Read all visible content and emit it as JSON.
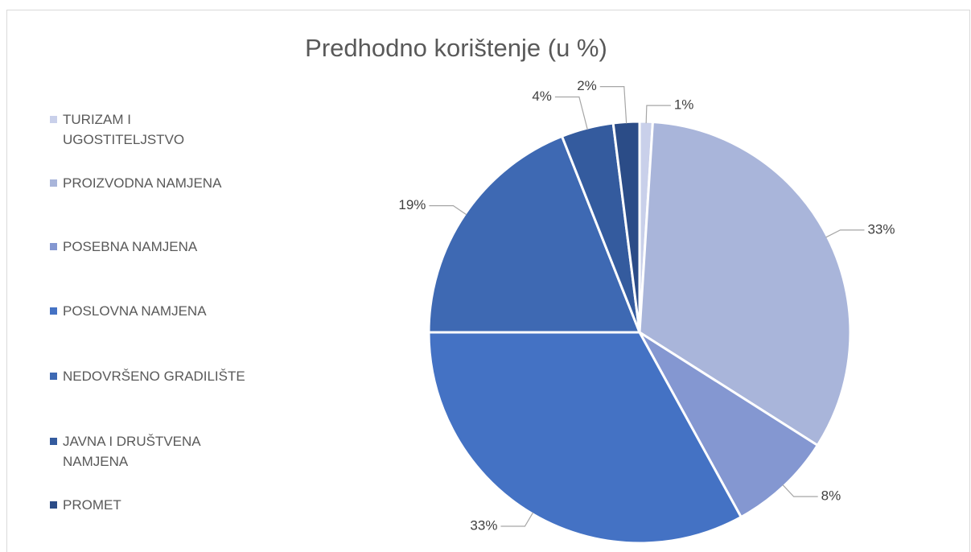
{
  "chart_data": {
    "type": "pie",
    "title": "Predhodno korištenje (u %)",
    "categories": [
      "TURIZAM I UGOSTITELJSTVO",
      "PROIZVODNA NAMJENA",
      "POSEBNA NAMJENA",
      "POSLOVNA NAMJENA",
      "NEDOVRŠENO GRADILIŠTE",
      "JAVNA I DRUŠTVENA NAMJENA",
      "PROMET"
    ],
    "values": [
      1,
      33,
      8,
      33,
      19,
      4,
      2
    ],
    "value_labels": [
      "1%",
      "33%",
      "8%",
      "33%",
      "19%",
      "4%",
      "2%"
    ],
    "colors": [
      "#c9d0ea",
      "#a9b5da",
      "#8497d1",
      "#4472c4",
      "#3e69b3",
      "#345b9e",
      "#2b4c87"
    ],
    "legend": "left"
  }
}
